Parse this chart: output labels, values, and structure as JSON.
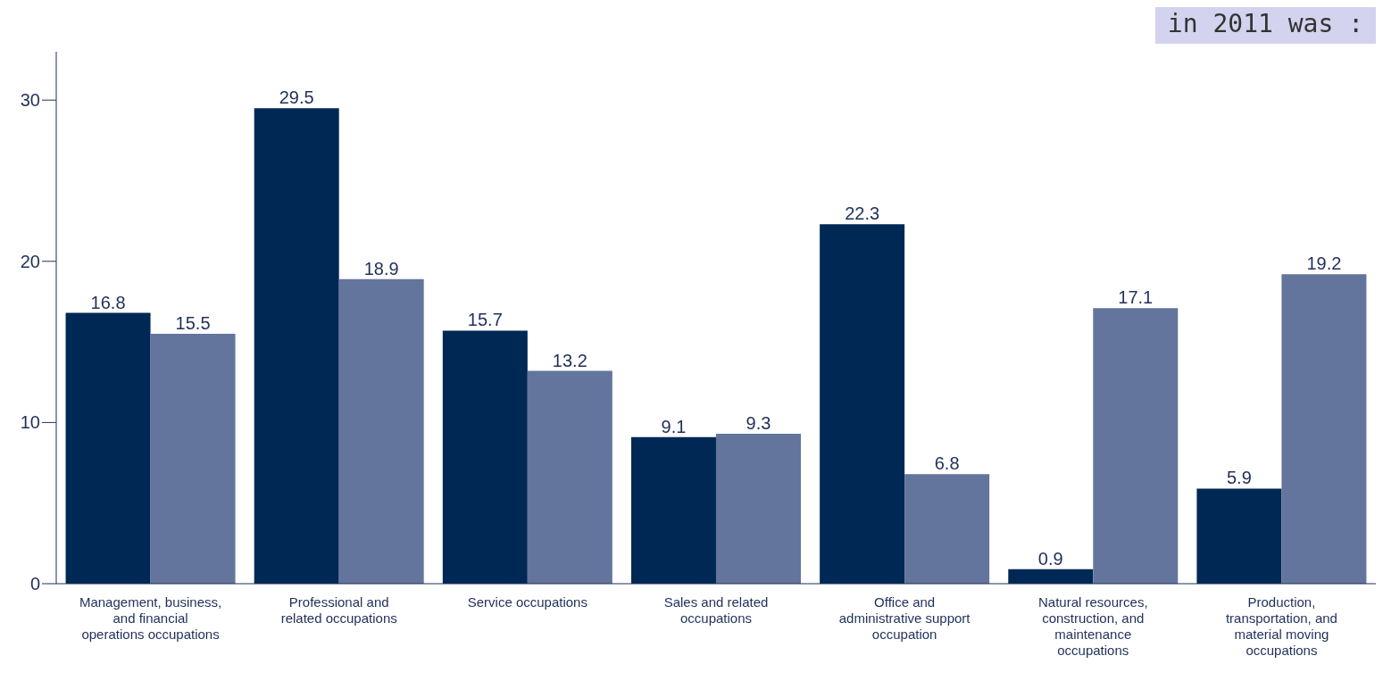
{
  "chart_data": {
    "type": "bar",
    "categories": [
      "Management, business, and financial operations occupations",
      "Professional and related occupations",
      "Service occupations",
      "Sales and related occupations",
      "Office and administrative support occupation",
      "Natural resources, construction, and maintenance occupations",
      "Production, transportation, and material moving occupations"
    ],
    "series": [
      {
        "color": "#002855",
        "values": [
          16.8,
          29.5,
          15.7,
          9.1,
          22.3,
          0.9,
          5.9
        ]
      },
      {
        "color": "#63759c",
        "values": [
          15.5,
          18.9,
          13.2,
          9.3,
          6.8,
          17.1,
          19.2
        ]
      }
    ],
    "ylim": [
      0,
      33
    ],
    "yticks": [
      0,
      10,
      20,
      30
    ],
    "grid": false,
    "legend": false,
    "data_labels": true,
    "annotations": [
      "in 2011 was :"
    ]
  }
}
